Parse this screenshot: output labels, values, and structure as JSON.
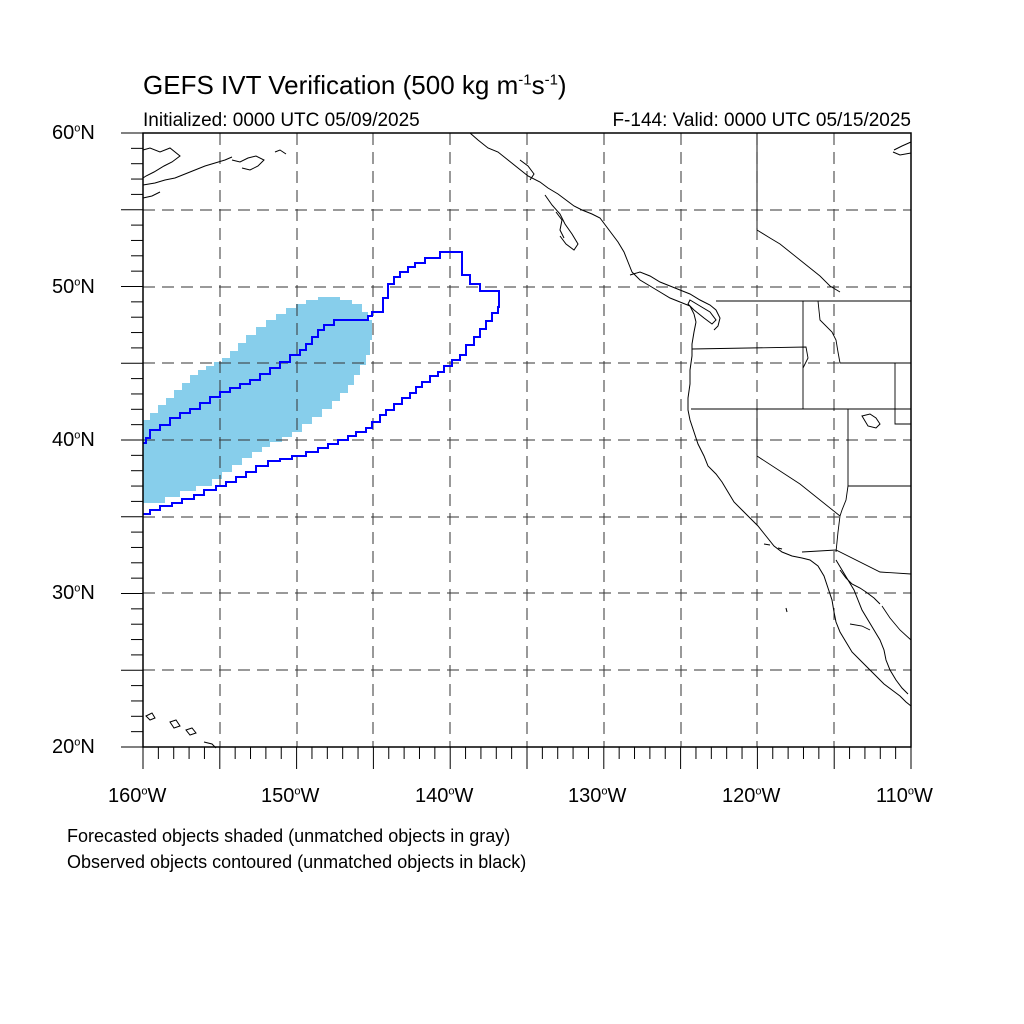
{
  "title": {
    "main": "GEFS IVT Verification (500 kg m",
    "sup1": "-1",
    "mid": "s",
    "sup2": "-1",
    "end": ")"
  },
  "subtitle": {
    "initialized": "Initialized: 0000 UTC 05/09/2025",
    "valid": "F-144: Valid: 0000 UTC 05/15/2025"
  },
  "axes": {
    "y_labels": [
      {
        "deg": "60",
        "hem": "N"
      },
      {
        "deg": "50",
        "hem": "N"
      },
      {
        "deg": "40",
        "hem": "N"
      },
      {
        "deg": "30",
        "hem": "N"
      },
      {
        "deg": "20",
        "hem": "N"
      }
    ],
    "x_labels": [
      {
        "deg": "160",
        "hem": "W"
      },
      {
        "deg": "150",
        "hem": "W"
      },
      {
        "deg": "140",
        "hem": "W"
      },
      {
        "deg": "130",
        "hem": "W"
      },
      {
        "deg": "120",
        "hem": "W"
      },
      {
        "deg": "110",
        "hem": "W"
      }
    ],
    "lon_range": [
      -160,
      -110
    ],
    "lat_range": [
      20,
      60
    ],
    "grid_interval_deg": 5,
    "grid": "dashed"
  },
  "notes": {
    "line1": "Forecasted objects shaded (unmatched objects in gray)",
    "line2": "Observed objects contoured (unmatched objects in black)"
  },
  "colors": {
    "forecast_fill": "#87ceeb",
    "observed_contour": "#0000ff",
    "coastline": "#000000",
    "grid": "#000000"
  }
}
